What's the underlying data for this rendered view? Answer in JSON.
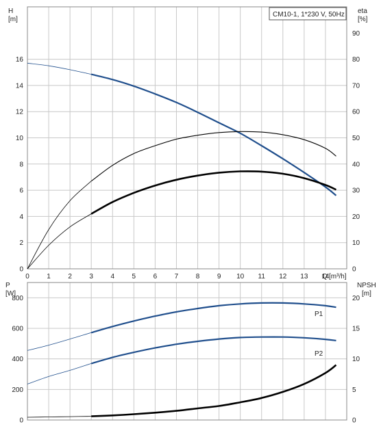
{
  "chart_data": [
    {
      "type": "line",
      "title": "CM10-1, 1*230 V, 50Hz",
      "xlabel": "Q [m³/h]",
      "x_unit": "[m³/h]",
      "x_label_text": "Q",
      "xlim": [
        0,
        15
      ],
      "xticks": [
        "0",
        "1",
        "2",
        "3",
        "4",
        "5",
        "6",
        "7",
        "8",
        "9",
        "10",
        "11",
        "12",
        "13",
        "14"
      ],
      "ylabel_left": {
        "name": "H",
        "unit": "[m]"
      },
      "ylim_left": [
        0,
        20
      ],
      "yticks_left": [
        "0",
        "2",
        "4",
        "6",
        "8",
        "10",
        "12",
        "14",
        "16"
      ],
      "ylabel_right": {
        "name": "eta",
        "unit": "[%]"
      },
      "ylim_right": [
        0,
        100
      ],
      "yticks_right": [
        "0",
        "10",
        "20",
        "30",
        "40",
        "50",
        "60",
        "70",
        "80",
        "90"
      ],
      "grid": true,
      "series": [
        {
          "axis": "left",
          "color": "#1f4e8c",
          "x": [
            0,
            1,
            2,
            3,
            4,
            5,
            6,
            7,
            8,
            9,
            10,
            11,
            12,
            13,
            14,
            14.5
          ],
          "y": [
            15.7,
            15.5,
            15.2,
            14.85,
            14.45,
            13.95,
            13.35,
            12.7,
            11.95,
            11.15,
            10.35,
            9.4,
            8.4,
            7.35,
            6.25,
            5.6
          ]
        },
        {
          "axis": "right",
          "color": "#000000",
          "x": [
            0,
            1,
            2,
            3,
            4,
            5,
            6,
            7,
            8,
            9,
            10,
            11,
            12,
            13,
            14,
            14.5
          ],
          "y": [
            0,
            15,
            26,
            33.5,
            39.5,
            44,
            47,
            49.5,
            51,
            52,
            52.4,
            52.2,
            51.2,
            49.3,
            46,
            43
          ]
        },
        {
          "axis": "right",
          "color": "#000000",
          "x": [
            0,
            1,
            2,
            3,
            4,
            5,
            6,
            7,
            8,
            9,
            10,
            11,
            12,
            13,
            14,
            14.5
          ],
          "y": [
            0,
            9,
            16,
            21,
            25.5,
            29,
            31.8,
            34,
            35.6,
            36.7,
            37.2,
            37.1,
            36.3,
            34.6,
            32,
            30.2
          ]
        }
      ]
    },
    {
      "type": "line",
      "xlim": [
        0,
        15
      ],
      "ylabel_left": {
        "name": "P",
        "unit": "[W]"
      },
      "ylim_left": [
        0,
        900
      ],
      "yticks_left": [
        "0",
        "200",
        "400",
        "600",
        "800"
      ],
      "ylabel_right": {
        "name": "NPSH",
        "unit": "[m]"
      },
      "ylim_right": [
        0,
        22.5
      ],
      "yticks_right": [
        "0",
        "5",
        "10",
        "15",
        "20"
      ],
      "grid": true,
      "series": [
        {
          "name": "P1",
          "axis": "left",
          "color": "#1f4e8c",
          "x": [
            0,
            1,
            2,
            3,
            4,
            5,
            6,
            7,
            8,
            9,
            10,
            11,
            12,
            13,
            14,
            14.5
          ],
          "y": [
            455,
            490,
            530,
            572,
            612,
            648,
            680,
            708,
            730,
            748,
            760,
            766,
            766,
            760,
            748,
            738
          ]
        },
        {
          "name": "P2",
          "axis": "left",
          "color": "#1f4e8c",
          "x": [
            0,
            1,
            2,
            3,
            4,
            5,
            6,
            7,
            8,
            9,
            10,
            11,
            12,
            13,
            14,
            14.5
          ],
          "y": [
            235,
            285,
            325,
            370,
            410,
            443,
            472,
            496,
            515,
            530,
            540,
            543,
            543,
            538,
            528,
            520
          ]
        },
        {
          "axis": "right",
          "color": "#000000",
          "x": [
            0,
            1,
            2,
            3,
            4,
            5,
            6,
            7,
            8,
            9,
            10,
            11,
            12,
            13,
            14,
            14.5
          ],
          "y": [
            0.45,
            0.5,
            0.55,
            0.6,
            0.75,
            0.95,
            1.2,
            1.5,
            1.9,
            2.3,
            2.9,
            3.6,
            4.6,
            5.9,
            7.7,
            9.0
          ]
        }
      ]
    }
  ]
}
